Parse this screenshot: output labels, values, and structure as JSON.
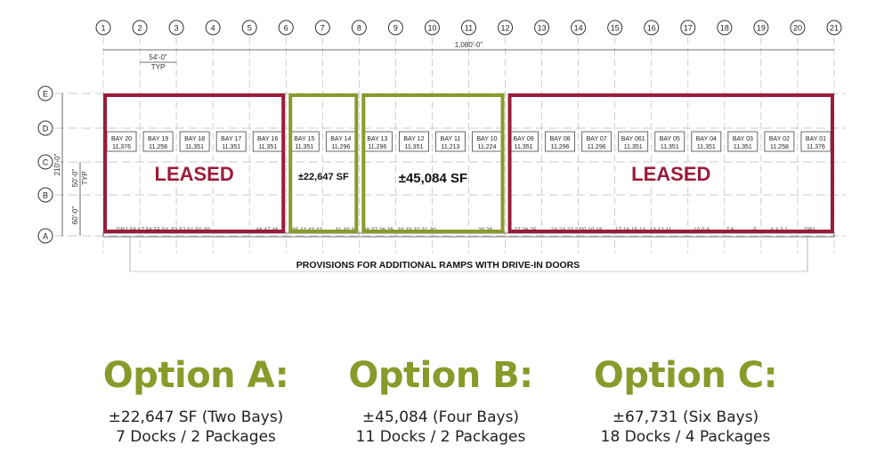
{
  "plan": {
    "columns": [
      "1",
      "2",
      "3",
      "4",
      "5",
      "6",
      "7",
      "8",
      "9",
      "10",
      "11",
      "12",
      "13",
      "14",
      "15",
      "16",
      "17",
      "18",
      "19",
      "20",
      "21"
    ],
    "rows": [
      "E",
      "D",
      "C",
      "B",
      "A"
    ],
    "overall_dimension": "1,080'-0\"",
    "bay_dimension": "54'-0\"",
    "bay_dimension_note": "TYP",
    "depth_dimension": "210'-0\"",
    "row_dimension": "50'-0\"",
    "row_dimension_note": "TYP",
    "dock_row_dimension": "60'-0\"",
    "bays": [
      {
        "name": "BAY 20",
        "sf": "11,376"
      },
      {
        "name": "BAY 19",
        "sf": "11,258"
      },
      {
        "name": "BAY 18",
        "sf": "11,351"
      },
      {
        "name": "BAY 17",
        "sf": "11,351"
      },
      {
        "name": "BAY 16",
        "sf": "11,351"
      },
      {
        "name": "BAY 15",
        "sf": "11,351"
      },
      {
        "name": "BAY 14",
        "sf": "11,296"
      },
      {
        "name": "BAY 13",
        "sf": "11,296"
      },
      {
        "name": "BAY 12",
        "sf": "11,351"
      },
      {
        "name": "BAY 11",
        "sf": "11,213"
      },
      {
        "name": "BAY 10",
        "sf": "11,224"
      },
      {
        "name": "BAY 09",
        "sf": "11,351"
      },
      {
        "name": "BAY 08",
        "sf": "11,296"
      },
      {
        "name": "BAY 07",
        "sf": "11,296"
      },
      {
        "name": "BAY 061",
        "sf": "11,351"
      },
      {
        "name": "BAY 05",
        "sf": "11,351"
      },
      {
        "name": "BAY 04",
        "sf": "11,351"
      },
      {
        "name": "BAY 03",
        "sf": "11,351"
      },
      {
        "name": "BAY 02",
        "sf": "11,258"
      },
      {
        "name": "BAY 01",
        "sf": "11,376"
      }
    ],
    "docks": [
      "DR2 58 57 56 55 54",
      "53 52 51 50 49",
      "48 47 46",
      "45 44 43 42",
      "41 40 39",
      "38 37 36 35",
      "34 33 32 31 30",
      "29 28",
      "27 26 25",
      "24 23 22 21",
      "20 19 18",
      "17 16 15 14",
      "13 12 11",
      "10 9 8",
      "7 6",
      "5",
      "4 3 2 1",
      "DR1"
    ],
    "areas": [
      {
        "label": "LEASED",
        "status": "leased",
        "color": "#9b1b3a",
        "from_col": "1",
        "to_col": "6"
      },
      {
        "label": "±22,647 SF",
        "status": "option",
        "color": "#8a9a2a",
        "from_col": "6",
        "to_col": "8"
      },
      {
        "label": "±45,084 SF",
        "status": "option",
        "color": "#8a9a2a",
        "from_col": "8",
        "to_col": "12"
      },
      {
        "label": "LEASED",
        "status": "leased",
        "color": "#9b1b3a",
        "from_col": "12",
        "to_col": "21"
      }
    ],
    "ramps_note": "PROVISIONS FOR ADDITIONAL RAMPS WITH DRIVE-IN DOORS"
  },
  "options": [
    {
      "title": "Option A:",
      "line1": "±22,647 SF (Two Bays)",
      "line2": "7 Docks / 2 Packages"
    },
    {
      "title": "Option B:",
      "line1": "±45,084 (Four Bays)",
      "line2": "11 Docks / 2 Packages"
    },
    {
      "title": "Option C:",
      "line1": "±67,731 (Six Bays)",
      "line2": "18 Docks / 4 Packages"
    }
  ],
  "colors": {
    "accent_green": "#8a9a2a",
    "leased_red": "#9b1b3a"
  }
}
